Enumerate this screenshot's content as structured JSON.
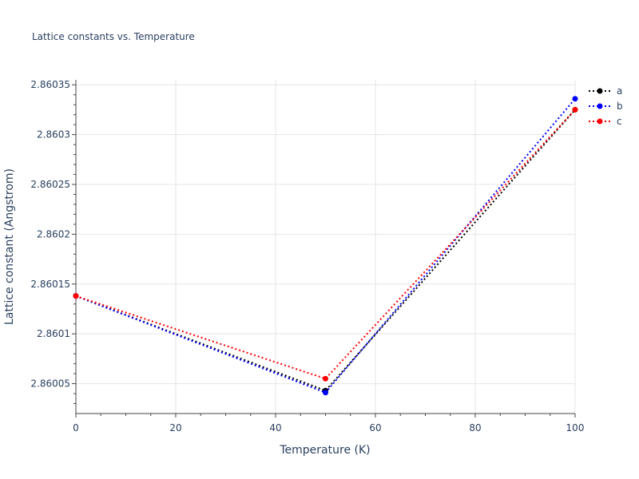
{
  "chart_data": {
    "type": "line",
    "title": "Lattice constants vs. Temperature",
    "xlabel": "Temperature (K)",
    "ylabel": "Lattice constant (Angstrom)",
    "xlim": [
      0,
      100
    ],
    "ylim": [
      2.86002,
      2.860355
    ],
    "x_ticks": [
      0,
      20,
      40,
      60,
      80,
      100
    ],
    "x_tick_labels": [
      "0",
      "20",
      "40",
      "60",
      "80",
      "100"
    ],
    "y_ticks": [
      2.86005,
      2.8601,
      2.86015,
      2.8602,
      2.86025,
      2.8603,
      2.86035
    ],
    "y_tick_labels": [
      "2.86005",
      "2.8601",
      "2.86015",
      "2.8602",
      "2.86025",
      "2.8603",
      "2.86035"
    ],
    "grid": true,
    "legend_position": "top-right",
    "series": [
      {
        "name": "a",
        "color": "#000000",
        "line_style": "dotted",
        "marker": "circle",
        "x": [
          0,
          50,
          100
        ],
        "y": [
          2.860138,
          2.860043,
          2.860325
        ]
      },
      {
        "name": "b",
        "color": "#0000ff",
        "line_style": "dotted",
        "marker": "circle",
        "x": [
          0,
          50,
          100
        ],
        "y": [
          2.860138,
          2.860041,
          2.860336
        ]
      },
      {
        "name": "c",
        "color": "#ff0000",
        "line_style": "dotted",
        "marker": "circle",
        "x": [
          0,
          50,
          100
        ],
        "y": [
          2.860138,
          2.860055,
          2.860325
        ]
      }
    ]
  }
}
